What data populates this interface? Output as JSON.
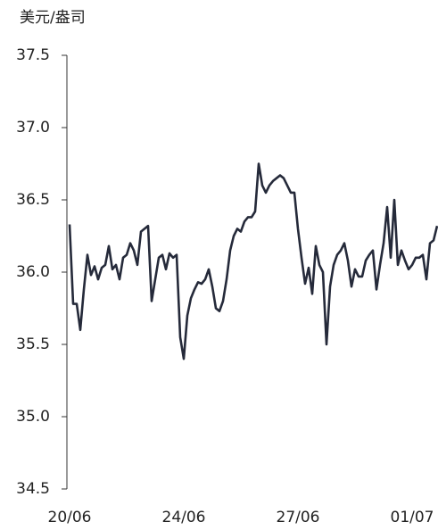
{
  "chart_data": {
    "type": "line",
    "y_label": "美元/盎司",
    "categories": [
      "20/06",
      null,
      null,
      null,
      null,
      null,
      null,
      null,
      null,
      null,
      null,
      null,
      null,
      null,
      null,
      null,
      null,
      null,
      null,
      null,
      null,
      null,
      null,
      null,
      null,
      null,
      null,
      null,
      null,
      null,
      null,
      null,
      "24/06",
      null,
      null,
      null,
      null,
      null,
      null,
      null,
      null,
      null,
      null,
      null,
      null,
      null,
      null,
      null,
      null,
      null,
      null,
      null,
      null,
      null,
      null,
      null,
      null,
      null,
      null,
      null,
      null,
      null,
      null,
      null,
      "27/06",
      null,
      null,
      null,
      null,
      null,
      null,
      null,
      null,
      null,
      null,
      null,
      null,
      null,
      null,
      null,
      null,
      null,
      null,
      null,
      null,
      null,
      null,
      null,
      null,
      null,
      null,
      null,
      null,
      null,
      null,
      null,
      "01/07",
      null,
      null,
      null,
      null,
      null,
      null,
      null
    ],
    "series": [
      {
        "color": "#252a3a",
        "values": [
          36.33,
          35.78,
          35.78,
          35.6,
          35.88,
          36.12,
          35.98,
          36.04,
          35.95,
          36.03,
          36.05,
          36.18,
          36.02,
          36.05,
          35.95,
          36.1,
          36.12,
          36.2,
          36.15,
          36.05,
          36.28,
          36.3,
          36.32,
          35.8,
          35.95,
          36.1,
          36.12,
          36.02,
          36.13,
          36.1,
          36.12,
          35.55,
          35.4,
          35.7,
          35.82,
          35.88,
          35.93,
          35.92,
          35.95,
          36.02,
          35.9,
          35.75,
          35.73,
          35.8,
          35.95,
          36.15,
          36.25,
          36.3,
          36.28,
          36.35,
          36.38,
          36.38,
          36.42,
          36.75,
          36.6,
          36.55,
          36.6,
          36.63,
          36.65,
          36.67,
          36.65,
          36.6,
          36.55,
          36.55,
          36.3,
          36.1,
          35.92,
          36.03,
          35.85,
          36.18,
          36.05,
          36.0,
          35.5,
          35.9,
          36.05,
          36.12,
          36.15,
          36.2,
          36.08,
          35.9,
          36.02,
          35.97,
          35.97,
          36.08,
          36.12,
          36.15,
          35.88,
          36.05,
          36.2,
          36.45,
          36.1,
          36.5,
          36.05,
          36.15,
          36.08,
          36.02,
          36.05,
          36.1,
          36.1,
          36.12,
          35.95,
          36.2,
          36.22,
          36.32
        ]
      }
    ],
    "ylim": [
      34.5,
      37.5
    ],
    "yticks": [
      {
        "value": 34.5,
        "label": "34.5"
      },
      {
        "value": 35,
        "label": "35.0"
      },
      35.5,
      {
        "value": 36,
        "label": "36.0"
      },
      36.5,
      {
        "value": 37,
        "label": "37.0"
      },
      37.5
    ]
  }
}
